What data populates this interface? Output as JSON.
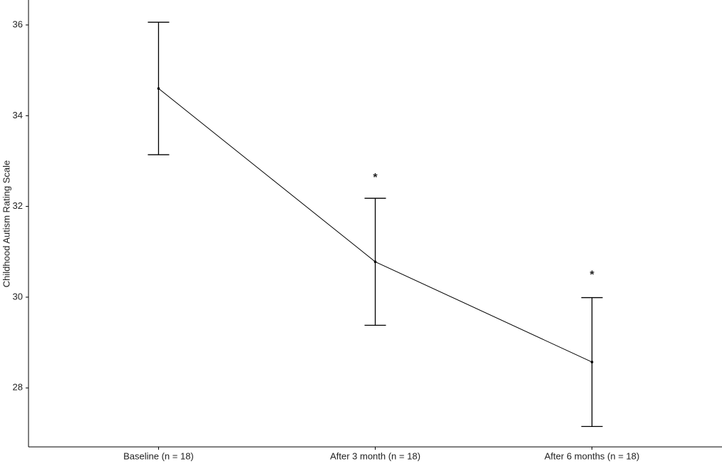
{
  "chart_data": {
    "type": "line",
    "y_label": "Childhood Autism Rating Scale",
    "categories": [
      "Baseline (n = 18)",
      "After 3 month (n = 18)",
      "After 6 months (n = 18)"
    ],
    "values": [
      34.6,
      30.78,
      28.57
    ],
    "errors": [
      1.46,
      1.4,
      1.42
    ],
    "color": "#000000",
    "ylim": [
      26.7,
      36.55
    ],
    "yticks": [
      28,
      30,
      32,
      34,
      36
    ],
    "grid": false,
    "annotations": [
      {
        "text": "*",
        "category": 1,
        "y": 32.67
      },
      {
        "text": "*",
        "category": 2,
        "y": 30.53
      }
    ]
  }
}
